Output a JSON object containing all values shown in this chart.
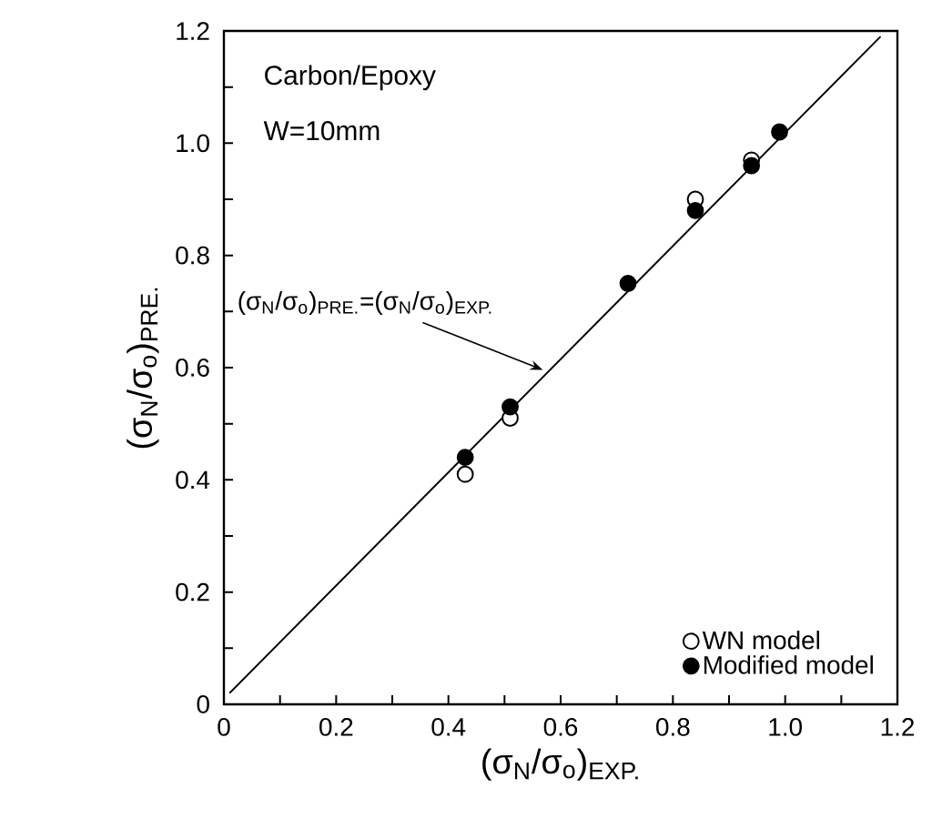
{
  "chart_data": {
    "type": "scatter",
    "xlabel": "(σ$_{N}$/σ$_{o}$)$_{EXP.}$",
    "ylabel": "(σ$_{N}$/σ$_{o}$)$_{PRE.}$",
    "annotations": [
      "Carbon/Epoxy",
      "W=10mm",
      "(σ$_{N}$/σ$_{o}$)$_{PRE.}$=(σ$_{N}$/σ$_{o}$)$_{EXP.}$"
    ],
    "series": [
      {
        "name": "WN model",
        "color": "#ffffff",
        "marker": "circle",
        "x": [
          0.43,
          0.51,
          0.84,
          0.94
        ],
        "values": [
          0.41,
          0.51,
          0.9,
          0.97
        ]
      },
      {
        "name": "Modified model",
        "color": "#000000",
        "marker": "circle",
        "x": [
          0.43,
          0.51,
          0.72,
          0.84,
          0.94,
          0.99
        ],
        "values": [
          0.44,
          0.53,
          0.75,
          0.88,
          0.96,
          1.02
        ]
      },
      {
        "type": "line",
        "color": "#000000",
        "x": [
          0.01,
          1.17
        ],
        "values": [
          0.02,
          1.19
        ]
      }
    ],
    "legend": "bottom right",
    "xlim": [
      0,
      1.2
    ],
    "ylim": [
      0,
      1.2
    ],
    "xticks": [
      0,
      {
        "value": 0.1,
        "label": null
      },
      0.2,
      {
        "value": 0.3,
        "label": null
      },
      0.4,
      {
        "value": 0.5,
        "label": null
      },
      0.6,
      {
        "value": 0.7,
        "label": null
      },
      0.8,
      {
        "value": 0.9,
        "label": null
      },
      {
        "value": 1,
        "label": "1.0"
      },
      {
        "value": 1.1,
        "label": null
      },
      1.2
    ],
    "yticks": [
      0,
      {
        "value": 0.1,
        "label": null
      },
      0.2,
      {
        "value": 0.3,
        "label": null
      },
      0.4,
      {
        "value": 0.5,
        "label": null
      },
      0.6,
      {
        "value": 0.7,
        "label": null
      },
      0.8,
      {
        "value": 0.9,
        "label": null
      },
      {
        "value": 1,
        "label": "1.0"
      },
      {
        "value": 1.1,
        "label": null
      },
      1.2
    ]
  }
}
